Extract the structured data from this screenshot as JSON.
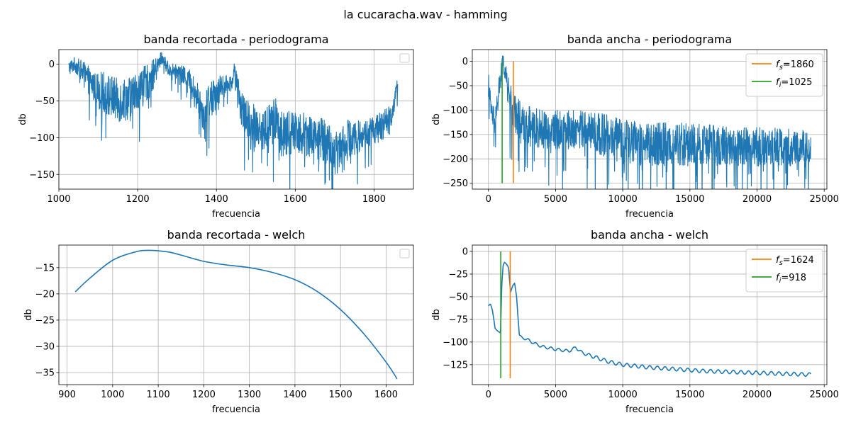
{
  "suptitle": "la cucaracha.wav - hamming",
  "chart_data": [
    {
      "type": "line",
      "title": "banda recortada - periodograma",
      "xlabel": "frecuencia",
      "ylabel": "db",
      "xlim": [
        1000,
        1900
      ],
      "ylim": [
        -170,
        20
      ],
      "xticks": [
        1000,
        1200,
        1400,
        1600,
        1800
      ],
      "yticks": [
        0,
        -50,
        -100,
        -150
      ],
      "grid": true,
      "legend": "top-right (empty)",
      "series": [
        {
          "color": "#1f77b4",
          "noisy": true,
          "x": [
            1025,
            1040,
            1060,
            1080,
            1100,
            1120,
            1150,
            1180,
            1200,
            1230,
            1250,
            1260,
            1280,
            1300,
            1330,
            1360,
            1370,
            1380,
            1400,
            1420,
            1440,
            1445,
            1460,
            1480,
            1500,
            1520,
            1550,
            1570,
            1600,
            1630,
            1660,
            1690,
            1700,
            1720,
            1750,
            1780,
            1800,
            1820,
            1840,
            1850,
            1860
          ],
          "values": [
            -5,
            0,
            -10,
            -25,
            -35,
            -40,
            -50,
            -45,
            -35,
            -22,
            -5,
            10,
            -8,
            -10,
            -20,
            -55,
            -70,
            -50,
            -35,
            -30,
            -25,
            -5,
            -55,
            -75,
            -80,
            -90,
            -75,
            -100,
            -90,
            -95,
            -100,
            -110,
            -125,
            -105,
            -100,
            -95,
            -90,
            -85,
            -75,
            -55,
            -25
          ],
          "band": [
            10,
            10,
            15,
            20,
            25,
            30,
            30,
            30,
            25,
            25,
            15,
            8,
            10,
            10,
            15,
            25,
            25,
            25,
            20,
            15,
            10,
            8,
            25,
            25,
            30,
            30,
            30,
            35,
            30,
            30,
            30,
            30,
            30,
            30,
            25,
            20,
            20,
            20,
            20,
            15,
            8
          ]
        }
      ]
    },
    {
      "type": "line",
      "title": "banda ancha - periodograma",
      "xlabel": "frecuencia",
      "ylabel": "db",
      "xlim": [
        -1200,
        25200
      ],
      "ylim": [
        -262,
        24
      ],
      "xticks": [
        0,
        5000,
        10000,
        15000,
        20000,
        25000
      ],
      "yticks": [
        0,
        -50,
        -100,
        -150,
        -200,
        -250
      ],
      "grid": true,
      "legend": "top-right",
      "series": [
        {
          "color": "#1f77b4",
          "noisy": true,
          "x": [
            0,
            200,
            500,
            900,
            1100,
            1400,
            1800,
            2500,
            4000,
            6000,
            7500,
            9000,
            10000,
            12000,
            15000,
            18000,
            21000,
            24000
          ],
          "values": [
            -50,
            -100,
            -130,
            -30,
            0,
            -50,
            -100,
            -125,
            -140,
            -140,
            -140,
            -155,
            -165,
            -170,
            -170,
            -175,
            -175,
            -178
          ],
          "band": [
            30,
            25,
            25,
            30,
            15,
            30,
            40,
            40,
            40,
            40,
            40,
            45,
            45,
            45,
            45,
            40,
            40,
            35
          ]
        },
        {
          "name": "f_s=1860",
          "color": "#ff7f0e",
          "x": [
            1860,
            1860
          ],
          "values": [
            0,
            -250
          ]
        },
        {
          "name": "f_i=1025",
          "color": "#2ca02c",
          "x": [
            1025,
            1025
          ],
          "values": [
            0,
            -250
          ]
        }
      ]
    },
    {
      "type": "line",
      "title": "banda recortada - welch",
      "xlabel": "frecuencia",
      "ylabel": "db",
      "xlim": [
        882,
        1660
      ],
      "ylim": [
        -37.3,
        -10.7
      ],
      "xticks": [
        900,
        1000,
        1100,
        1200,
        1300,
        1400,
        1500,
        1600
      ],
      "yticks": [
        -15,
        -20,
        -25,
        -30,
        -35
      ],
      "grid": true,
      "legend": "top-right (empty)",
      "series": [
        {
          "color": "#1f77b4",
          "x": [
            918,
            950,
            1000,
            1050,
            1080,
            1120,
            1150,
            1200,
            1250,
            1300,
            1350,
            1400,
            1450,
            1500,
            1550,
            1600,
            1624
          ],
          "values": [
            -19.6,
            -17.0,
            -13.6,
            -12.0,
            -11.7,
            -12.0,
            -12.6,
            -13.8,
            -14.5,
            -15.0,
            -15.9,
            -17.3,
            -19.6,
            -23.0,
            -27.5,
            -33.0,
            -36.2
          ]
        }
      ]
    },
    {
      "type": "line",
      "title": "banda ancha - welch",
      "xlabel": "frecuencia",
      "ylabel": "db",
      "xlim": [
        -1200,
        25200
      ],
      "ylim": [
        -147,
        7
      ],
      "xticks": [
        0,
        5000,
        10000,
        15000,
        20000,
        25000
      ],
      "yticks": [
        0,
        -25,
        -50,
        -75,
        -100,
        -125
      ],
      "grid": true,
      "legend": "top-right",
      "series": [
        {
          "color": "#1f77b4",
          "x": [
            0,
            150,
            300,
            500,
            700,
            900,
            1000,
            1100,
            1200,
            1350,
            1500,
            1650,
            1800,
            1950,
            2100,
            2300,
            2500,
            3000,
            3500,
            4000,
            5000,
            6000,
            6500,
            7000,
            8000,
            9000,
            10000,
            12000,
            14000,
            16000,
            18000,
            20000,
            22000,
            24000
          ],
          "values": [
            -60,
            -58,
            -65,
            -85,
            -88,
            -90,
            -35,
            -15,
            -12,
            -14,
            -18,
            -45,
            -38,
            -35,
            -50,
            -93,
            -95,
            -98,
            -102,
            -105,
            -108,
            -110,
            -106,
            -112,
            -117,
            -122,
            -125,
            -128,
            -130,
            -132,
            -133,
            -134,
            -135,
            -136
          ],
          "ripple": [
            0,
            0,
            0,
            0,
            0,
            0,
            0,
            0,
            0,
            0,
            0,
            0,
            0,
            0,
            0,
            1,
            1,
            1.5,
            1.5,
            1.5,
            1.5,
            1.5,
            1.5,
            1.5,
            2,
            2,
            2,
            2,
            2,
            2,
            2,
            2,
            2,
            2
          ]
        },
        {
          "name": "f_s=1624",
          "color": "#ff7f0e",
          "x": [
            1624,
            1624
          ],
          "values": [
            0,
            -140
          ]
        },
        {
          "name": "f_i=918",
          "color": "#2ca02c",
          "x": [
            918,
            918
          ],
          "values": [
            0,
            -140
          ]
        }
      ]
    }
  ]
}
